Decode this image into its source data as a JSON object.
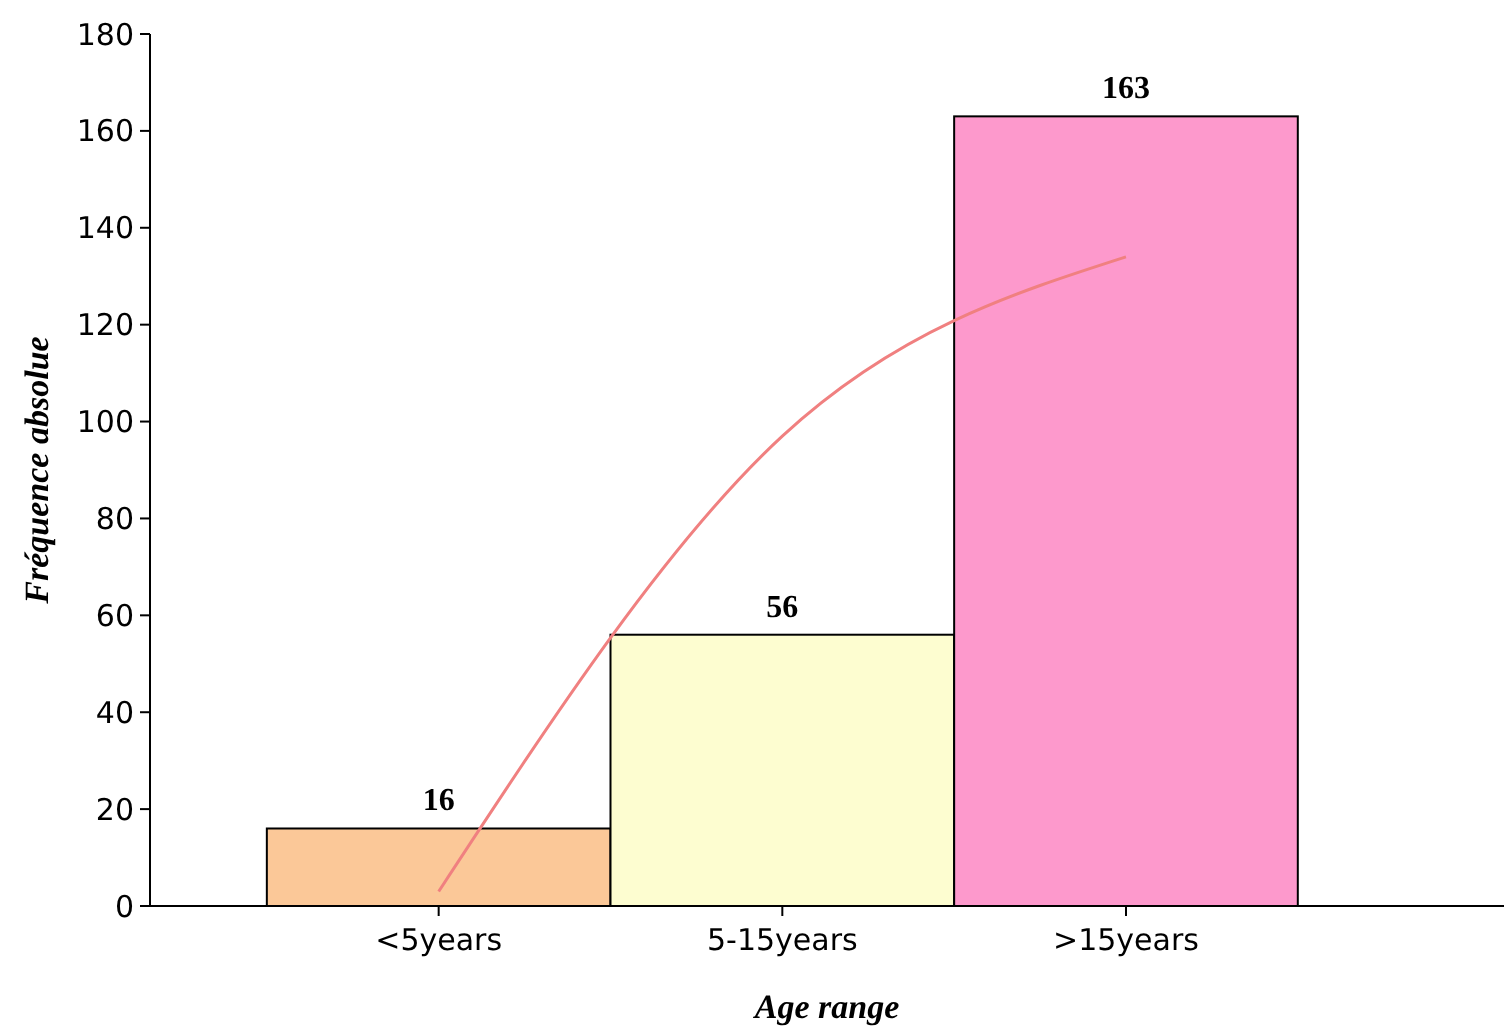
{
  "chart_data": {
    "type": "bar",
    "xlabel": "Age range",
    "ylabel": "Fréquence absolue",
    "categories": [
      "<5years",
      "5-15years",
      ">15years"
    ],
    "series": [
      {
        "values": [
          16,
          56,
          163
        ],
        "colors": [
          "#fbc898",
          "#fdfdd0",
          "#fd99cc"
        ]
      },
      {
        "type": "line",
        "color": "#f08080",
        "values": [
          3,
          97,
          134
        ]
      }
    ],
    "value_labels": [
      "16",
      "56",
      "163"
    ],
    "ylim": [
      0,
      180
    ],
    "yticks": [
      0,
      20,
      40,
      60,
      80,
      100,
      120,
      140,
      160,
      180
    ],
    "grid": false
  }
}
